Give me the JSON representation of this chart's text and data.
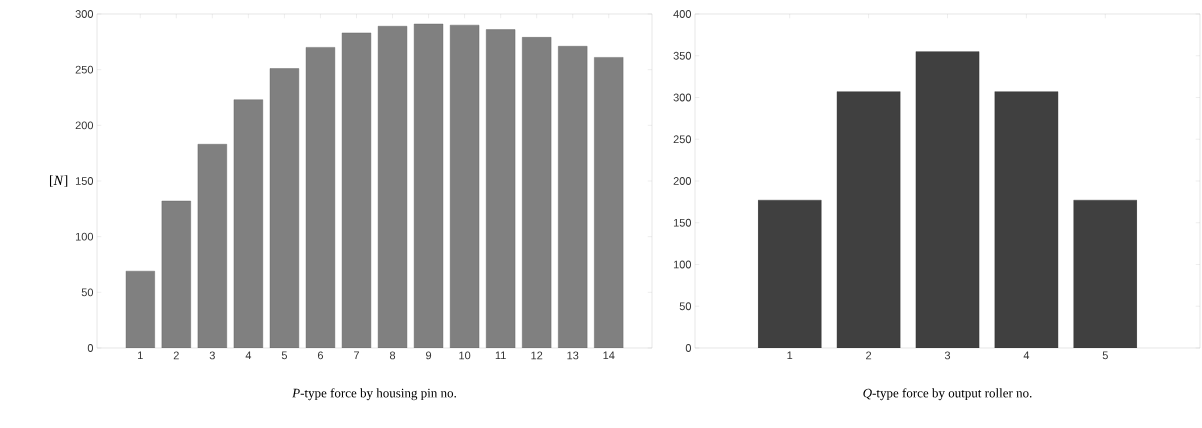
{
  "chart_data": [
    {
      "type": "bar",
      "xlabel": "*P*-type force by housing pin no.",
      "ylabel": "[*N*]",
      "categories": [
        "1",
        "2",
        "3",
        "4",
        "5",
        "6",
        "7",
        "8",
        "9",
        "10",
        "11",
        "12",
        "13",
        "14"
      ],
      "values": [
        69,
        132,
        183,
        223,
        251,
        270,
        283,
        289,
        291,
        290,
        286,
        279,
        271,
        261
      ],
      "color": "#808080",
      "ylim": [
        0,
        300
      ],
      "yticks": [
        0,
        50,
        100,
        150,
        200,
        250,
        300
      ],
      "grid": false
    },
    {
      "type": "bar",
      "xlabel": "*Q*-type force by output roller no.",
      "categories": [
        "1",
        "2",
        "3",
        "4",
        "5"
      ],
      "values": [
        177,
        307,
        355,
        307,
        177
      ],
      "color": "#404040",
      "ylim": [
        0,
        400
      ],
      "yticks": [
        0,
        50,
        100,
        150,
        200,
        250,
        300,
        350,
        400
      ],
      "grid": false
    }
  ]
}
